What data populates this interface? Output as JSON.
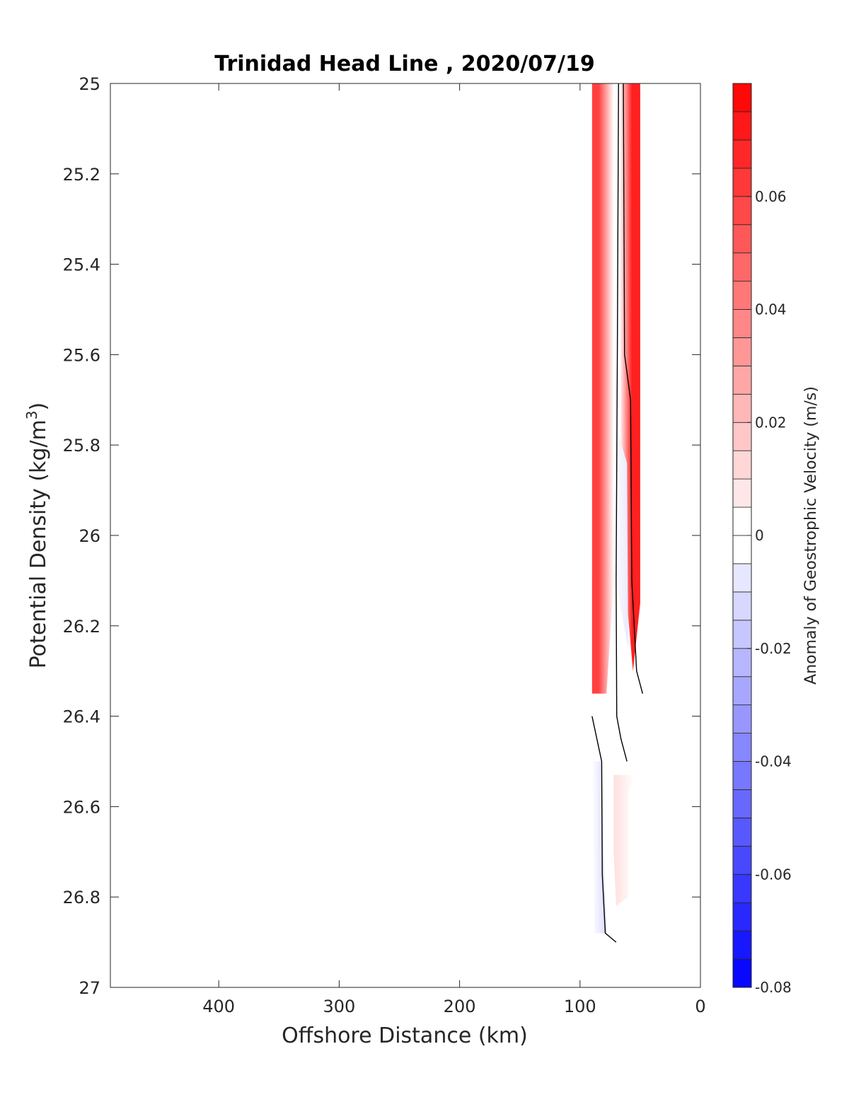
{
  "chart_data": {
    "type": "contourf",
    "title": "Trinidad Head Line , 2020/07/19",
    "xlabel": "Offshore Distance (km)",
    "ylabel_main": "Potential Density (kg/m",
    "ylabel_sup": "3",
    "ylabel_end": ")",
    "xlim": [
      490,
      0
    ],
    "x_reversed": true,
    "ylim": [
      25,
      27
    ],
    "y_reversed": true,
    "xticks": [
      400,
      300,
      200,
      100,
      0
    ],
    "xtick_labels": [
      "400",
      "300",
      "200",
      "100",
      "0"
    ],
    "yticks": [
      25,
      25.2,
      25.4,
      25.6,
      25.8,
      26,
      26.2,
      26.4,
      26.6,
      26.8,
      27
    ],
    "ytick_labels": [
      "25",
      "25.2",
      "25.4",
      "25.6",
      "25.8",
      "26",
      "26.2",
      "26.4",
      "26.6",
      "26.8",
      "27"
    ],
    "colorbar": {
      "label": "Anomaly of Geostrophic Velocity (m/s)",
      "clim": [
        -0.08,
        0.08
      ],
      "level_step": 0.005,
      "ticks": [
        -0.08,
        -0.06,
        -0.04,
        -0.02,
        0,
        0.02,
        0.04,
        0.06
      ],
      "tick_labels": [
        "-0.08",
        "-0.06",
        "-0.04",
        "-0.02",
        "0",
        "0.02",
        "0.04",
        "0.06"
      ],
      "colormap": "blue-white-red",
      "color_negative": "#0000ff",
      "color_zero": "#ffffff",
      "color_positive": "#ff0000"
    },
    "filled_regions": [
      {
        "name": "west-positive-band",
        "value": 0.06,
        "polygon": [
          [
            90,
            25
          ],
          [
            72,
            25
          ],
          [
            72,
            26.1
          ],
          [
            78,
            26.35
          ],
          [
            90,
            26.35
          ]
        ]
      },
      {
        "name": "east-positive-band",
        "value": 0.07,
        "polygon": [
          [
            67,
            25
          ],
          [
            50,
            25
          ],
          [
            50,
            26.15
          ],
          [
            56,
            26.3
          ],
          [
            66,
            26.0
          ]
        ]
      },
      {
        "name": "center-negative-patch",
        "value": -0.007,
        "polygon": [
          [
            71,
            25.75
          ],
          [
            61,
            25.84
          ],
          [
            60,
            26.25
          ],
          [
            67,
            26.15
          ],
          [
            72,
            26.05
          ]
        ]
      },
      {
        "name": "deep-positive-patch",
        "value": 0.01,
        "polygon": [
          [
            72,
            26.53
          ],
          [
            55,
            26.53
          ],
          [
            60,
            26.57
          ],
          [
            60,
            26.8
          ],
          [
            70,
            26.82
          ],
          [
            72,
            26.7
          ]
        ]
      },
      {
        "name": "deep-negative-patch",
        "value": -0.012,
        "polygon": [
          [
            90,
            26.5
          ],
          [
            82,
            26.5
          ],
          [
            80,
            26.75
          ],
          [
            78,
            26.88
          ],
          [
            88,
            26.88
          ]
        ]
      }
    ],
    "zero_contours": [
      [
        [
          68,
          25
        ],
        [
          69,
          25.6
        ],
        [
          70,
          26.1
        ],
        [
          69.5,
          26.4
        ],
        [
          66,
          26.45
        ],
        [
          61,
          26.5
        ]
      ],
      [
        [
          64,
          25
        ],
        [
          63,
          25.6
        ],
        [
          58,
          25.7
        ],
        [
          57,
          26.1
        ],
        [
          53,
          26.3
        ],
        [
          48,
          26.35
        ]
      ],
      [
        [
          90,
          26.4
        ],
        [
          82,
          26.5
        ],
        [
          81.5,
          26.75
        ],
        [
          79,
          26.88
        ],
        [
          70,
          26.9
        ]
      ]
    ]
  }
}
